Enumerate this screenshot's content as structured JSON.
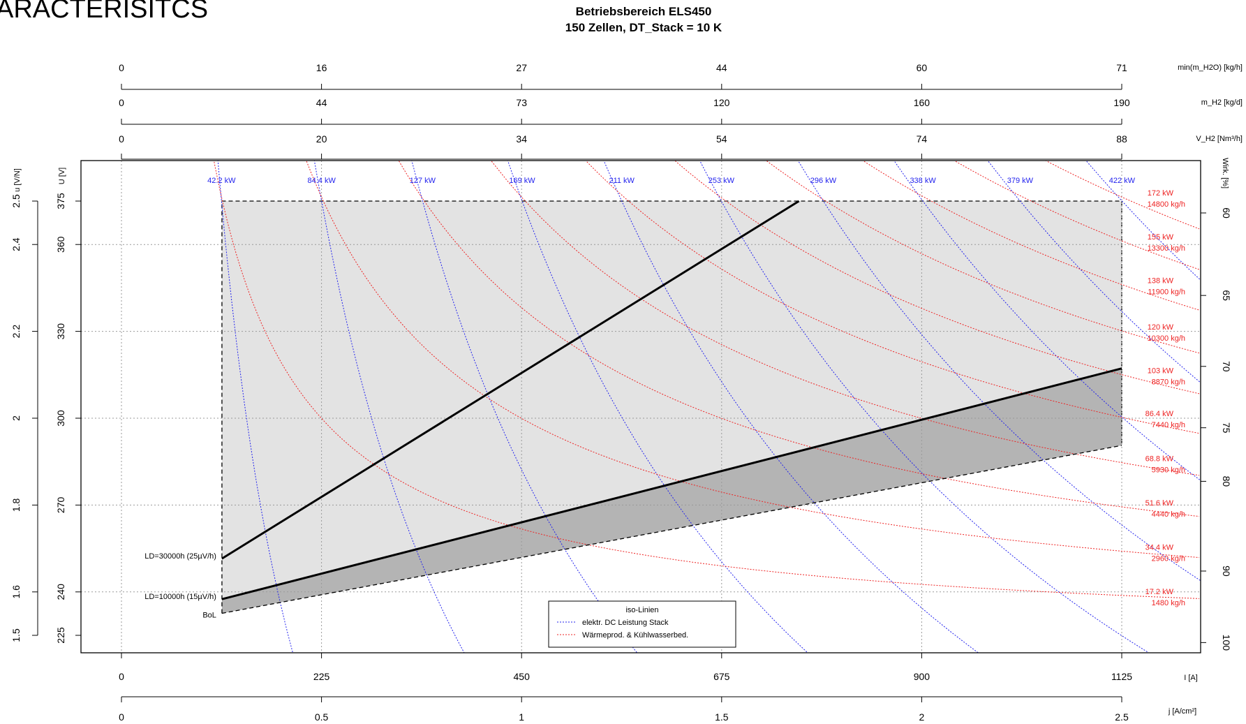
{
  "page": {
    "heading": "ARACTERISITCS"
  },
  "chart_data": {
    "type": "line",
    "title": "Betriebsbereich ELS450",
    "subtitle": "150 Zellen, DT_Stack = 10 K",
    "xlabel": "I [A]",
    "ylabel": "U [V]",
    "xlim": [
      0,
      1125
    ],
    "ylim": [
      225,
      375
    ],
    "grid": true,
    "x_ticks": [
      0,
      225,
      450,
      675,
      900,
      1125
    ],
    "y_ticks": [
      225,
      240,
      270,
      300,
      330,
      360,
      375
    ],
    "axes": {
      "bottom_secondary": {
        "label": "j [A/cm²]",
        "ticks": [
          "0",
          "0.5",
          "1",
          "1.5",
          "2",
          "2.5"
        ]
      },
      "top_axes": [
        {
          "label": "min(m_H2O) [kg/h]",
          "ticks": [
            "0",
            "16",
            "27",
            "44",
            "60",
            "71"
          ]
        },
        {
          "label": "m_H2 [kg/d]",
          "ticks": [
            "0",
            "44",
            "73",
            "120",
            "160",
            "190"
          ]
        },
        {
          "label": "V_H2 [Nm³/h]",
          "ticks": [
            "0",
            "20",
            "34",
            "54",
            "74",
            "88"
          ]
        }
      ],
      "left_secondary": {
        "label": "u [V/N]",
        "ticks": [
          {
            "label": "1.5",
            "u": 225
          },
          {
            "label": "1.6",
            "u": 240
          },
          {
            "label": "1.8",
            "u": 270
          },
          {
            "label": "2",
            "u": 300
          },
          {
            "label": "2.2",
            "u": 330
          },
          {
            "label": "2.4",
            "u": 360
          },
          {
            "label": "2.5",
            "u": 375
          }
        ]
      },
      "right": {
        "label": "Wirk. [%]",
        "ticks": [
          {
            "label": "60",
            "u": 370.9
          },
          {
            "label": "65",
            "u": 342.4
          },
          {
            "label": "70",
            "u": 317.9
          },
          {
            "label": "75",
            "u": 296.7
          },
          {
            "label": "80",
            "u": 278.2
          },
          {
            "label": "90",
            "u": 247.2
          },
          {
            "label": "100",
            "u": 222.5
          }
        ]
      }
    },
    "region": {
      "i_min": 113,
      "i_max": 1125,
      "u_top": 375,
      "u_bol_min": 232.6,
      "u_bol_max": 290.6,
      "u_ld10_min": 237.5,
      "u_ld10_max": 317.2,
      "colors": {
        "upper": "#e3e3e3",
        "band": "#b4b4b4"
      }
    },
    "series": [
      {
        "name": "LD=30000h (25µV/h)",
        "x": [
          113,
          762
        ],
        "y": [
          251.5,
          375
        ],
        "color": "#000000"
      },
      {
        "name": "LD=10000h (15µV/h)",
        "x": [
          113,
          1125
        ],
        "y": [
          237.5,
          317.2
        ],
        "color": "#000000"
      },
      {
        "name": "BoL",
        "x": [
          113,
          1125
        ],
        "y": [
          232.6,
          290.6
        ],
        "color": "#000000"
      }
    ],
    "power_iso_lines": {
      "color": "#2222ee",
      "labels": [
        "42.2 kW",
        "84.4 kW",
        "127 kW",
        "169 kW",
        "211 kW",
        "253 kW",
        "296 kW",
        "338 kW",
        "379 kW",
        "422 kW"
      ],
      "kw": [
        42.2,
        84.4,
        127,
        169,
        211,
        253,
        296,
        338,
        379,
        422
      ]
    },
    "heat_iso_lines": {
      "color": "#ee2222",
      "labels": [
        [
          "172 kW",
          "14800 kg/h"
        ],
        [
          "155 kW",
          "13300 kg/h"
        ],
        [
          "138 kW",
          "11900 kg/h"
        ],
        [
          "120 kW",
          "10300 kg/h"
        ],
        [
          "103 kW",
          "8870 kg/h"
        ],
        [
          "86.4 kW",
          "7440 kg/h"
        ],
        [
          "68.8 kW",
          "5930 kg/h"
        ],
        [
          "51.6 kW",
          "4440 kg/h"
        ],
        [
          "34.4 kW",
          "2960 kg/h"
        ],
        [
          "17.2 kW",
          "1480 kg/h"
        ]
      ],
      "kw": [
        172,
        155,
        138,
        120,
        103,
        86.4,
        68.8,
        51.6,
        34.4,
        17.2
      ]
    },
    "legend": {
      "title": "iso-Linien",
      "position": "bottom-center",
      "entries": [
        {
          "label": "elektr. DC Leistung Stack",
          "color": "#2222ee"
        },
        {
          "label": "Wärmeprod. & Kühlwasserbed.",
          "color": "#ee2222"
        }
      ]
    }
  }
}
